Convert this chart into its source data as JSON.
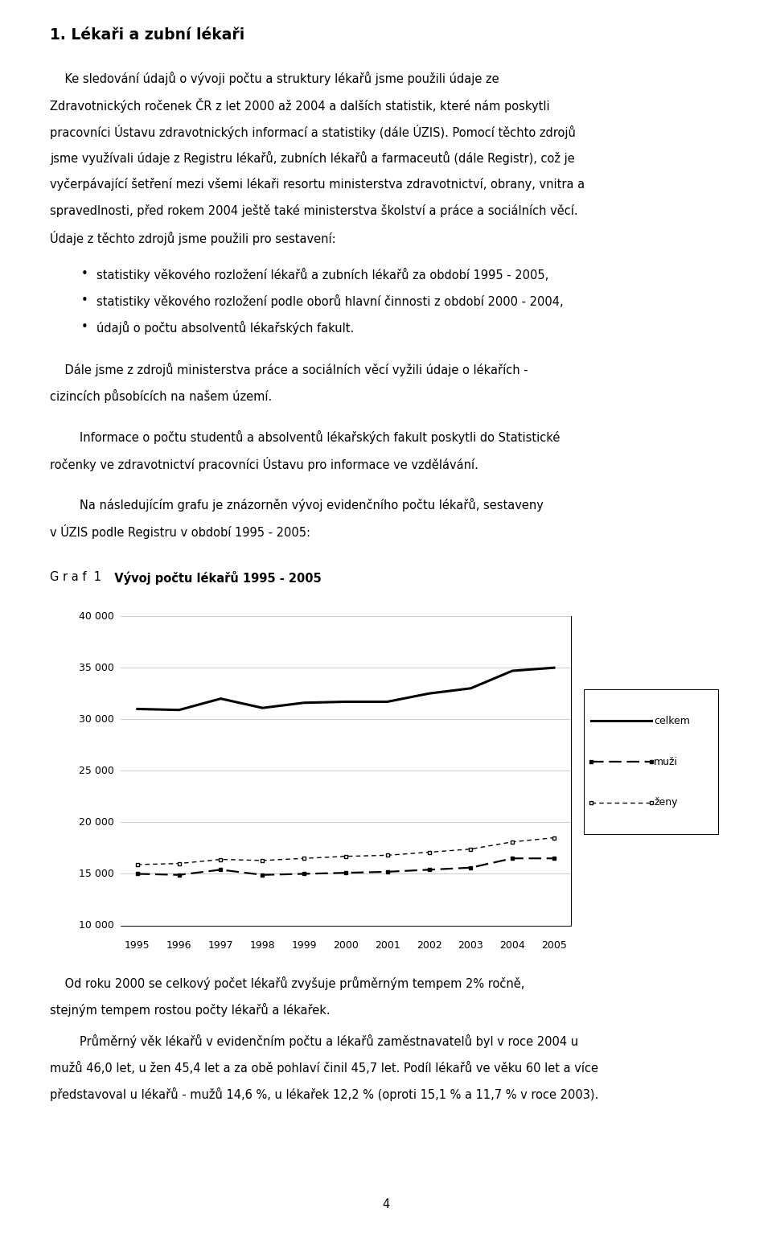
{
  "title": "1. Lékaři a zubní lékaři",
  "para1_lines": [
    "    Ke sledování údajů o vývoji počtu a struktury lékařů jsme použili údaje ze",
    "Zdravotnických ročenek ČR z let 2000 až 2004 a dalších statistik, které nám poskytli",
    "pracovníci Ústavu zdravotnických informací a statistiky (dále ÚZIS). Pomocí těchto zdrojů",
    "jsme využívali údaje z Registru lékařů, zubních lékařů a farmaceutů (dále Registr), což je",
    "vyčerpávající šetření mezi všemi lékaři resortu ministerstva zdravotnictví, obrany, vnitra a",
    "spravedlnosti, před rokem 2004 ještě také ministerstva školství a práce a sociálních věcí.",
    "Údaje z těchto zdrojů jsme použili pro sestavení:"
  ],
  "bullets": [
    "statistiky věkového rozložení lékařů a zubních lékařů za období 1995 - 2005,",
    "statistiky věkového rozložení podle oborů hlavní činnosti z období 2000 - 2004,",
    "údajů o počtu absolventů lékařských fakult."
  ],
  "para2_lines": [
    "    Dále jsme z zdrojů ministerstva práce a sociálních věcí vyžili údaje o lékařích -",
    "cizincích působících na našem území."
  ],
  "para3_lines": [
    "        Informace o počtu studentů a absolventů lékařských fakult poskytli do Statistické",
    "ročenky ve zdravotnictví pracovníci Ústavu pro informace ve vzdělávání."
  ],
  "para4_lines": [
    "        Na následujícím grafu je znázorněn vývoj evidenčního počtu lékařů, sestaveny",
    "v ÚZIS podle Registru v období 1995 - 2005:"
  ],
  "graf_normal": "G r a f  1",
  "graf_bold": "  Vývoj počtu lékařů 1995 - 2005",
  "years": [
    1995,
    1996,
    1997,
    1998,
    1999,
    2000,
    2001,
    2002,
    2003,
    2004,
    2005
  ],
  "celkem": [
    31000,
    30900,
    32000,
    31100,
    31600,
    31700,
    31700,
    32500,
    33000,
    34700,
    35000
  ],
  "muzi": [
    15000,
    14900,
    15400,
    14900,
    15000,
    15100,
    15200,
    15400,
    15600,
    16500,
    16500
  ],
  "zeny": [
    15900,
    16000,
    16400,
    16300,
    16500,
    16700,
    16800,
    17100,
    17400,
    18100,
    18500
  ],
  "yticks": [
    10000,
    15000,
    20000,
    25000,
    30000,
    35000,
    40000
  ],
  "ytick_labels": [
    "10 000",
    "15 000",
    "20 000",
    "25 000",
    "30 000",
    "35 000",
    "40 000"
  ],
  "para5_lines": [
    "    Od roku 2000 se celkový počet lékařů zvyšuje průměrným tempem 2% ročně,",
    "stejným tempem rostou počty lékařů a lékařek."
  ],
  "para6_lines": [
    "        Průměrný věk lékařů v evidenčním počtu a lékařů zaměstnavatelů byl v roce 2004 u",
    "mužů 46,0 let, u žen 45,4 let a za obě pohlaví činil 45,7 let. Podíl lékařů ve věku 60 let a více",
    "představoval u lékařů - mužů 14,6 %, u lékařek 12,2 % (oproti 15,1 % a 11,7 % v roce 2003)."
  ],
  "footer": "4",
  "bg_color": "#ffffff",
  "chart_bg": "#e8e8e8",
  "body_size": 10.5,
  "title_size": 13.5,
  "lh": 0.0215
}
